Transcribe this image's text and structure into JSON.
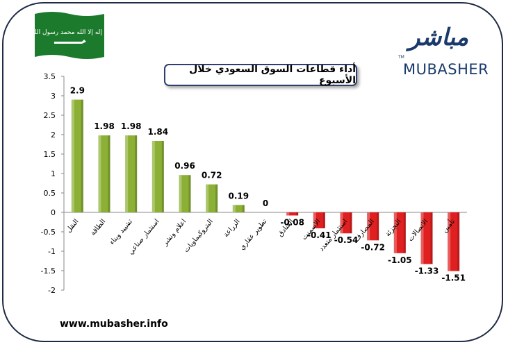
{
  "header": {
    "title": "أداء قطاعات السوق السعودي خلال الأسبوع",
    "logo_arabic": "مباشر",
    "logo_latin": "MUBASHER",
    "logo_tm": "TM",
    "flag_inscription": "لا إله إلا الله محمد رسول الله"
  },
  "footer": {
    "website": "www.mubasher.info"
  },
  "colors": {
    "positive_bar": "#8bb035",
    "negative_bar": "#e02020",
    "frame": "#1f2a44",
    "flag_green": "#1c7a2c"
  },
  "chart_data": {
    "type": "bar",
    "title": "أداء قطاعات السوق السعودي خلال الأسبوع",
    "categories": [
      "النقل",
      "الطاقة",
      "تشييد وبناء",
      "استثمار صناعي",
      "اعلام ونشر",
      "البتروكيماويات",
      "الزراعة",
      "تطوير عقاري",
      "الفنادق",
      "الاسمنت",
      "استثمار متعدد",
      "المصارف",
      "التجزئة",
      "الاتصالات",
      "تأمين"
    ],
    "values": [
      2.9,
      1.98,
      1.98,
      1.84,
      0.96,
      0.72,
      0.19,
      0,
      -0.08,
      -0.41,
      -0.54,
      -0.72,
      -1.05,
      -1.33,
      -1.51
    ],
    "value_labels": [
      "2.9",
      "1.98",
      "1.98",
      "1.84",
      "0.96",
      "0.72",
      "0.19",
      "0",
      "-0.08",
      "-0.41",
      "-0.54",
      "-0.72",
      "-1.05",
      "-1.33",
      "-1.51"
    ],
    "ylim": [
      -2,
      3.5
    ],
    "yticks": [
      "3.5",
      "3",
      "2.5",
      "2",
      "1.5",
      "1",
      "0.5",
      "0",
      "-0.5",
      "-1",
      "-1.5",
      "-2"
    ],
    "xlabel": "",
    "ylabel": "",
    "grid": false,
    "legend": "none"
  }
}
